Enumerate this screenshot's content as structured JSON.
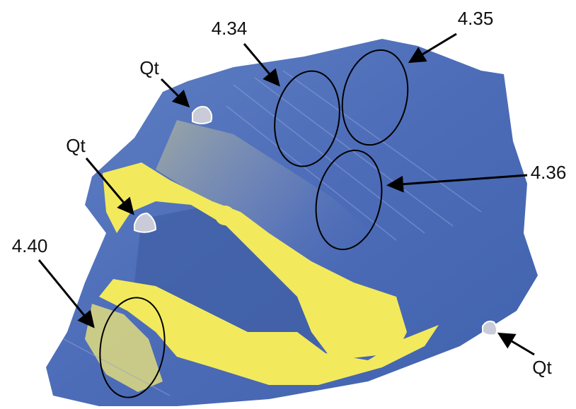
{
  "annotations": {
    "top_left_ellipse": "4.34",
    "top_right_ellipse": "4.35",
    "middle_ellipse": "4.36",
    "bottom_left_ellipse": "4.40",
    "quartz_upper": "Qt",
    "quartz_middle": "Qt",
    "quartz_lower_right": "Qt"
  }
}
